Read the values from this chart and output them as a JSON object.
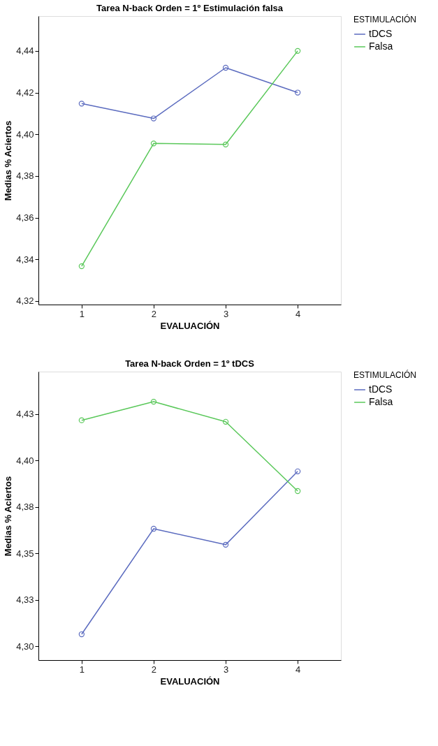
{
  "chart_data": [
    {
      "type": "line",
      "title": "Tarea N-back  Orden = 1º Estimulación falsa",
      "xlabel": "EVALUACIÓN",
      "ylabel": "Medias % Aciertos",
      "legend_title": "ESTIMULACIÓN",
      "legend": "right",
      "marker": "circle",
      "line_style": "solid",
      "grid": false,
      "categories": [
        "1",
        "2",
        "3",
        "4"
      ],
      "ylim": [
        4.3183,
        4.4567
      ],
      "yticks": [
        {
          "value": 4.32,
          "label": "4,32"
        },
        {
          "value": 4.34,
          "label": "4,34"
        },
        {
          "value": 4.36,
          "label": "4,36"
        },
        {
          "value": 4.38,
          "label": "4,38"
        },
        {
          "value": 4.4,
          "label": "4,40"
        },
        {
          "value": 4.42,
          "label": "4,42"
        },
        {
          "value": 4.44,
          "label": "4,44"
        }
      ],
      "series": [
        {
          "name": "tDCS",
          "color": "#5b6bbf",
          "values": [
            4.4147,
            4.4076,
            4.4319,
            4.42
          ]
        },
        {
          "name": "Falsa",
          "color": "#5ac85a",
          "values": [
            4.3367,
            4.3956,
            4.3951,
            4.44
          ]
        }
      ]
    },
    {
      "type": "line",
      "title": "Tarea N-back  Orden = 1º tDCS",
      "xlabel": "EVALUACIÓN",
      "ylabel": "Medias % Aciertos",
      "legend_title": "ESTIMULACIÓN",
      "legend": "right",
      "marker": "circle",
      "line_style": "solid",
      "grid": false,
      "categories": [
        "1",
        "2",
        "3",
        "4"
      ],
      "ylim": [
        4.2926,
        4.4479
      ],
      "yticks": [
        {
          "value": 4.3,
          "label": "4,30"
        },
        {
          "value": 4.325,
          "label": "4,33"
        },
        {
          "value": 4.35,
          "label": "4,35"
        },
        {
          "value": 4.375,
          "label": "4,38"
        },
        {
          "value": 4.4,
          "label": "4,40"
        },
        {
          "value": 4.425,
          "label": "4,43"
        }
      ],
      "series": [
        {
          "name": "tDCS",
          "color": "#5b6bbf",
          "values": [
            4.3065,
            4.3633,
            4.3547,
            4.3942
          ]
        },
        {
          "name": "Falsa",
          "color": "#5ac85a",
          "values": [
            4.4217,
            4.4317,
            4.4209,
            4.3836
          ]
        }
      ]
    }
  ]
}
